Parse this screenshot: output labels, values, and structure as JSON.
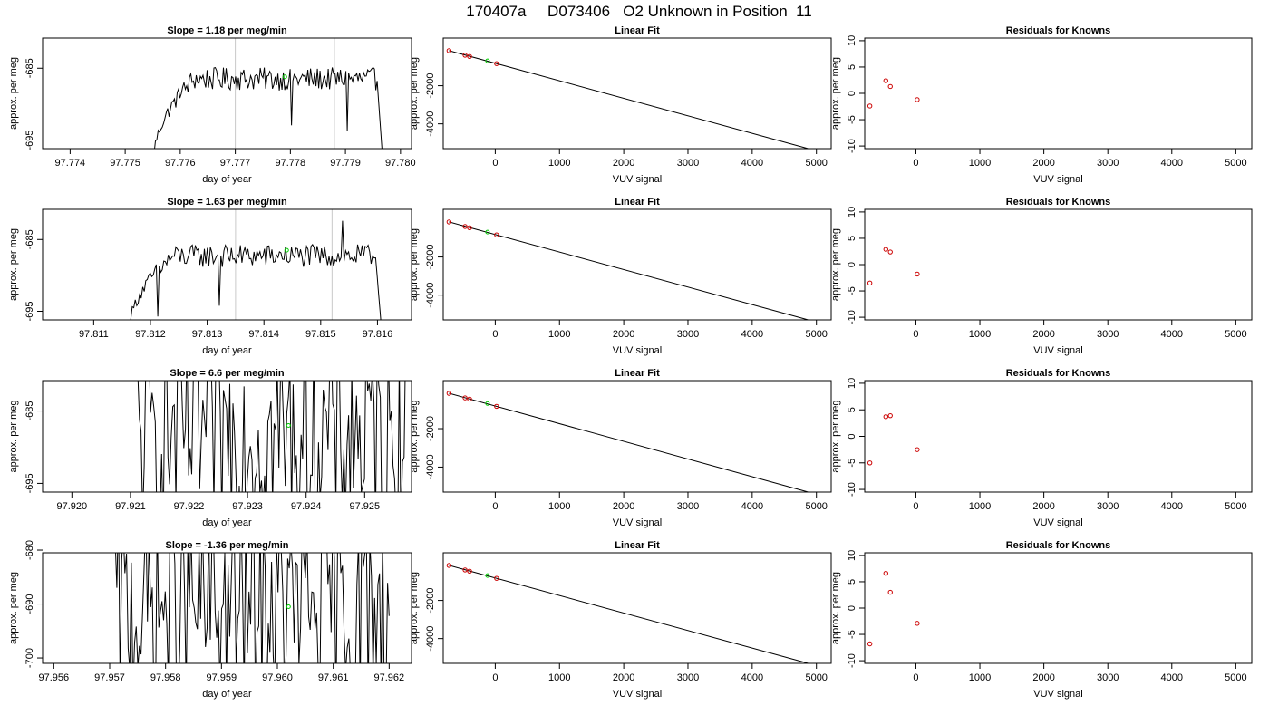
{
  "title": "170407a     D073406   O2 Unknown in Position  11",
  "chart_data": [
    {
      "panel": "row1-time",
      "type": "line",
      "title": "Slope =  1.18  per meg/min",
      "xlabel": "day of year",
      "ylabel": "approx. per meg",
      "xlim": [
        97.7735,
        97.7802
      ],
      "ylim": [
        -696.2,
        -680.8
      ],
      "xticks": [
        "97.774",
        "97.775",
        "97.776",
        "97.777",
        "97.778",
        "97.779",
        "97.780"
      ],
      "yticks": [
        "-695",
        "-685"
      ],
      "mode": "smooth",
      "x_start": 97.7755,
      "x_end": 97.7797,
      "base": -686.5,
      "amp": 1.6,
      "vlines": [
        97.777,
        97.7788
      ],
      "green_point": {
        "x": 97.7779,
        "y": -686.2
      }
    },
    {
      "panel": "row2-time",
      "type": "line",
      "title": "Slope =  1.63  per meg/min",
      "xlabel": "day of year",
      "ylabel": "approx. per meg",
      "xlim": [
        97.8101,
        97.8166
      ],
      "ylim": [
        -696.2,
        -680.8
      ],
      "xticks": [
        "97.811",
        "97.812",
        "97.813",
        "97.814",
        "97.815",
        "97.816"
      ],
      "yticks": [
        "-695",
        "-685"
      ],
      "mode": "smooth",
      "x_start": 97.8116,
      "x_end": 97.8161,
      "base": -687.3,
      "amp": 1.6,
      "vlines": [
        97.8135,
        97.8152
      ],
      "green_point": {
        "x": 97.8144,
        "y": -686.5
      }
    },
    {
      "panel": "row3-time",
      "type": "line",
      "title": "Slope =  6.6  per meg/min",
      "xlabel": "day of year",
      "ylabel": "approx. per meg",
      "xlim": [
        97.9195,
        97.9258
      ],
      "ylim": [
        -696.2,
        -680.8
      ],
      "xticks": [
        "97.920",
        "97.921",
        "97.922",
        "97.923",
        "97.924",
        "97.925"
      ],
      "yticks": [
        "-695",
        "-685"
      ],
      "mode": "spiky",
      "x_start": 97.9211,
      "x_end": 97.9257,
      "vlines": [],
      "green_point": {
        "x": 97.9237,
        "y": -687.0
      }
    },
    {
      "panel": "row4-time",
      "type": "line",
      "title": "Slope =  -1.36  per meg/min",
      "xlabel": "day of year",
      "ylabel": "approx. per meg",
      "xlim": [
        97.9558,
        97.9624
      ],
      "ylim": [
        -701.0,
        -680.5
      ],
      "xticks": [
        "97.956",
        "97.957",
        "97.958",
        "97.959",
        "97.960",
        "97.961",
        "97.962"
      ],
      "yticks": [
        "-700",
        "-690",
        "-680"
      ],
      "mode": "spiky",
      "x_start": 97.9571,
      "x_end": 97.962,
      "vlines": [],
      "green_point": {
        "x": 97.9602,
        "y": -690.5
      }
    },
    {
      "panel": "row1-fit",
      "type": "scatter",
      "title": "Linear Fit",
      "xlabel": "VUV signal",
      "ylabel": "approx. per meg",
      "xlim": [
        -810,
        5230
      ],
      "ylim": [
        -5300,
        500
      ],
      "xticks": [
        "0",
        "1000",
        "2000",
        "3000",
        "4000",
        "5000"
      ],
      "yticks": [
        "-4000",
        "-2000"
      ],
      "line": {
        "x": [
          -720,
          5100
        ],
        "y": [
          -160,
          -5510
        ]
      },
      "knowns": {
        "x": [
          -720,
          -470,
          -400,
          20
        ],
        "y": [
          -162,
          -400,
          -465,
          -840
        ]
      },
      "unknown": {
        "x": -120,
        "y": -693
      }
    },
    {
      "panel": "row2-fit",
      "type": "scatter",
      "title": "Linear Fit",
      "xlabel": "VUV signal",
      "ylabel": "approx. per meg",
      "xlim": [
        -810,
        5230
      ],
      "ylim": [
        -5300,
        500
      ],
      "xticks": [
        "0",
        "1000",
        "2000",
        "3000",
        "4000",
        "5000"
      ],
      "yticks": [
        "-4000",
        "-2000"
      ],
      "line": {
        "x": [
          -720,
          5100
        ],
        "y": [
          -160,
          -5510
        ]
      },
      "knowns": {
        "x": [
          -720,
          -470,
          -400,
          20
        ],
        "y": [
          -162,
          -400,
          -465,
          -840
        ]
      },
      "unknown": {
        "x": -120,
        "y": -693
      }
    },
    {
      "panel": "row3-fit",
      "type": "scatter",
      "title": "Linear Fit",
      "xlabel": "VUV signal",
      "ylabel": "approx. per meg",
      "xlim": [
        -810,
        5230
      ],
      "ylim": [
        -5300,
        500
      ],
      "xticks": [
        "0",
        "1000",
        "2000",
        "3000",
        "4000",
        "5000"
      ],
      "yticks": [
        "-4000",
        "-2000"
      ],
      "line": {
        "x": [
          -720,
          5100
        ],
        "y": [
          -160,
          -5510
        ]
      },
      "knowns": {
        "x": [
          -720,
          -470,
          -400,
          20
        ],
        "y": [
          -162,
          -400,
          -465,
          -840
        ]
      },
      "unknown": {
        "x": -120,
        "y": -693
      }
    },
    {
      "panel": "row4-fit",
      "type": "scatter",
      "title": "Linear Fit",
      "xlabel": "VUV signal",
      "ylabel": "approx. per meg",
      "xlim": [
        -810,
        5230
      ],
      "ylim": [
        -5300,
        500
      ],
      "xticks": [
        "0",
        "1000",
        "2000",
        "3000",
        "4000",
        "5000"
      ],
      "yticks": [
        "-4000",
        "-2000"
      ],
      "line": {
        "x": [
          -720,
          5100
        ],
        "y": [
          -160,
          -5510
        ]
      },
      "knowns": {
        "x": [
          -720,
          -470,
          -400,
          20
        ],
        "y": [
          -162,
          -400,
          -465,
          -840
        ]
      },
      "unknown": {
        "x": -120,
        "y": -693
      }
    },
    {
      "panel": "row1-resid",
      "type": "scatter",
      "title": "Residuals for Knowns",
      "xlabel": "VUV signal",
      "ylabel": "approx. per meg",
      "xlim": [
        -800,
        5250
      ],
      "ylim": [
        -10.5,
        10.5
      ],
      "xticks": [
        "0",
        "1000",
        "2000",
        "3000",
        "4000",
        "5000"
      ],
      "yticks": [
        "-10",
        "-5",
        "0",
        "5",
        "10"
      ],
      "x": [
        -720,
        -470,
        -400,
        20
      ],
      "y": [
        -2.4,
        2.4,
        1.3,
        -1.2
      ]
    },
    {
      "panel": "row2-resid",
      "type": "scatter",
      "title": "Residuals for Knowns",
      "xlabel": "VUV signal",
      "ylabel": "approx. per meg",
      "xlim": [
        -800,
        5250
      ],
      "ylim": [
        -10.5,
        10.5
      ],
      "xticks": [
        "0",
        "1000",
        "2000",
        "3000",
        "4000",
        "5000"
      ],
      "yticks": [
        "-10",
        "-5",
        "0",
        "5",
        "10"
      ],
      "x": [
        -720,
        -470,
        -400,
        20
      ],
      "y": [
        -3.5,
        2.9,
        2.4,
        -1.8
      ]
    },
    {
      "panel": "row3-resid",
      "type": "scatter",
      "title": "Residuals for Knowns",
      "xlabel": "VUV signal",
      "ylabel": "approx. per meg",
      "xlim": [
        -800,
        5250
      ],
      "ylim": [
        -10.5,
        10.5
      ],
      "xticks": [
        "0",
        "1000",
        "2000",
        "3000",
        "4000",
        "5000"
      ],
      "yticks": [
        "-10",
        "-5",
        "0",
        "5",
        "10"
      ],
      "x": [
        -720,
        -470,
        -400,
        20
      ],
      "y": [
        -5.0,
        3.7,
        3.9,
        -2.5
      ]
    },
    {
      "panel": "row4-resid",
      "type": "scatter",
      "title": "Residuals for Knowns",
      "xlabel": "VUV signal",
      "ylabel": "approx. per meg",
      "xlim": [
        -800,
        5250
      ],
      "ylim": [
        -10.5,
        10.5
      ],
      "xticks": [
        "0",
        "1000",
        "2000",
        "3000",
        "4000",
        "5000"
      ],
      "yticks": [
        "-10",
        "-5",
        "0",
        "5",
        "10"
      ],
      "x": [
        -720,
        -470,
        -400,
        20
      ],
      "y": [
        -6.8,
        6.6,
        3.0,
        -2.9
      ]
    }
  ]
}
